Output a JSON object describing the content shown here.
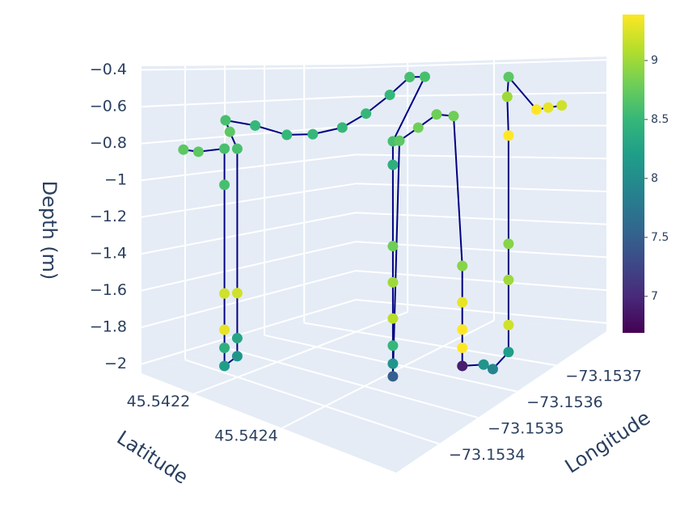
{
  "chart_data": {
    "type": "scatter3d",
    "xaxis_title": "Latitude",
    "yaxis_title": "Longitude",
    "zaxis_title": "Depth (m)",
    "x": [
      45.542125,
      45.542151,
      45.542177,
      45.542177,
      45.542177,
      45.542177,
      45.542177,
      45.542177,
      45.54219,
      45.54219,
      45.54219,
      45.54219,
      45.542164,
      45.542138,
      45.542164,
      45.542203,
      45.542229,
      45.542255,
      45.542268,
      45.542281,
      45.542294,
      45.54232,
      45.54243,
      45.54243,
      45.54243,
      45.54243,
      45.54243,
      45.54243,
      45.54243,
      45.54243,
      45.542437,
      45.542463,
      45.542489,
      45.542528,
      45.542548,
      45.542548,
      45.542548,
      45.542548,
      45.542548,
      45.54258,
      45.542593,
      45.542613,
      45.542613,
      45.542613,
      45.542613,
      45.542613,
      45.542593,
      45.54258,
      45.542619,
      45.54263,
      45.542645
    ],
    "y": [
      -73.153346,
      -73.153355,
      -73.153392,
      -73.153392,
      -73.153392,
      -73.153392,
      -73.153392,
      -73.153392,
      -73.15341,
      -73.15341,
      -73.15341,
      -73.15341,
      -73.15342,
      -73.153438,
      -73.153484,
      -73.153521,
      -73.153558,
      -73.153604,
      -73.15365,
      -73.153696,
      -73.153732,
      -73.153742,
      -73.153539,
      -73.153539,
      -73.153539,
      -73.153539,
      -73.153539,
      -73.153539,
      -73.153539,
      -73.153539,
      -73.153548,
      -73.153567,
      -73.153585,
      -73.153585,
      -73.153585,
      -73.153585,
      -73.153585,
      -73.153585,
      -73.153585,
      -73.153604,
      -73.153613,
      -73.153631,
      -73.153631,
      -73.153631,
      -73.153631,
      -73.153631,
      -73.15365,
      -73.153668,
      -73.153696,
      -73.153714,
      -73.153732
    ],
    "z": [
      -0.82,
      -0.82,
      -0.8,
      -1.0,
      -1.6,
      -1.8,
      -1.9,
      -2.0,
      -1.95,
      -1.85,
      -1.6,
      -0.8,
      -0.72,
      -0.67,
      -0.7,
      -0.75,
      -0.75,
      -0.72,
      -0.65,
      -0.55,
      -0.45,
      -0.45,
      -0.72,
      -0.85,
      -1.3,
      -1.5,
      -1.7,
      -1.85,
      -1.95,
      -2.02,
      -0.72,
      -0.65,
      -0.58,
      -0.58,
      -1.4,
      -1.6,
      -1.75,
      -1.85,
      -1.95,
      -1.95,
      -1.98,
      -1.9,
      -1.75,
      -1.5,
      -1.3,
      -0.7,
      -0.5,
      -0.4,
      -0.6,
      -0.6,
      -0.6
    ],
    "color_values": [
      8.7,
      8.7,
      8.6,
      8.6,
      9.2,
      9.3,
      8.4,
      8.2,
      8.1,
      8.3,
      9.2,
      8.6,
      8.7,
      8.6,
      8.5,
      8.5,
      8.5,
      8.5,
      8.5,
      8.5,
      8.6,
      8.6,
      8.6,
      8.4,
      8.8,
      9.0,
      9.1,
      8.5,
      8.1,
      7.5,
      8.7,
      8.8,
      8.8,
      8.8,
      8.9,
      9.3,
      9.4,
      9.4,
      6.9,
      8.1,
      7.9,
      8.2,
      9.2,
      9.0,
      8.9,
      9.4,
      9.0,
      8.7,
      9.4,
      9.3,
      9.2
    ],
    "colorscale": "Viridis",
    "line_color": "#000080",
    "xlim": [
      45.54208,
      45.54266
    ],
    "xticks": [
      45.5422,
      45.5424
    ],
    "ylim": [
      -73.15383,
      -73.15329
    ],
    "yticks": [
      {
        "value": -73.1534,
        "label": "−73.1534"
      },
      {
        "value": -73.1535,
        "label": "−73.1535"
      },
      {
        "value": -73.1536,
        "label": "−73.1536"
      },
      {
        "value": -73.1537,
        "label": "−73.1537"
      }
    ],
    "zlim": [
      -2.05,
      -0.38
    ],
    "zticks": [
      {
        "value": -0.4,
        "label": "−0.4"
      },
      {
        "value": -0.6,
        "label": "−0.6"
      },
      {
        "value": -0.8,
        "label": "−0.8"
      },
      {
        "value": -1,
        "label": "−1"
      },
      {
        "value": -1.2,
        "label": "−1.2"
      },
      {
        "value": -1.4,
        "label": "−1.4"
      },
      {
        "value": -1.6,
        "label": "−1.6"
      },
      {
        "value": -1.8,
        "label": "−1.8"
      },
      {
        "value": -2,
        "label": "−2"
      }
    ],
    "clim": [
      6.69,
      9.39
    ],
    "cticks": [
      7,
      7.5,
      8,
      8.5,
      9
    ],
    "grid": true
  }
}
